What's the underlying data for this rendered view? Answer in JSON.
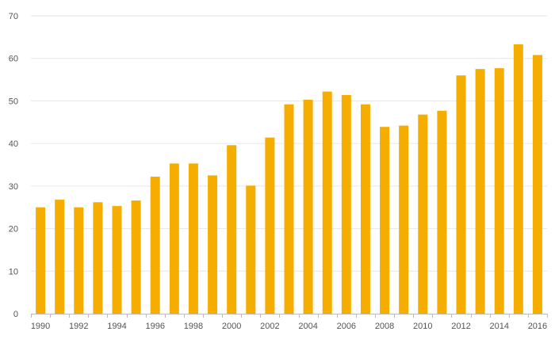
{
  "chart_data": {
    "type": "bar",
    "title": "",
    "xlabel": "",
    "ylabel": "",
    "ylim": [
      0,
      70
    ],
    "yticks": [
      0,
      10,
      20,
      30,
      40,
      50,
      60,
      70
    ],
    "grid": true,
    "legend": "none",
    "bar_color": "#f5ad00",
    "grid_color": "#e6e6e6",
    "axis_color": "#bbbbbb",
    "categories": [
      "1990",
      "1991",
      "1992",
      "1993",
      "1994",
      "1995",
      "1996",
      "1997",
      "1998",
      "1999",
      "2000",
      "2001",
      "2002",
      "2003",
      "2004",
      "2005",
      "2006",
      "2007",
      "2008",
      "2009",
      "2010",
      "2011",
      "2012",
      "2013",
      "2014",
      "2015",
      "2016"
    ],
    "x_tick_labels": [
      "1990",
      "1992",
      "1994",
      "1996",
      "1998",
      "2000",
      "2002",
      "2004",
      "2006",
      "2008",
      "2010",
      "2012",
      "2014",
      "2016"
    ],
    "values": [
      25.0,
      26.8,
      25.0,
      26.2,
      25.3,
      26.6,
      32.2,
      35.3,
      35.3,
      32.5,
      39.6,
      30.1,
      41.4,
      49.2,
      50.3,
      52.2,
      51.4,
      49.2,
      43.9,
      44.2,
      46.8,
      47.7,
      56.0,
      57.5,
      57.7,
      63.3,
      60.8
    ]
  }
}
